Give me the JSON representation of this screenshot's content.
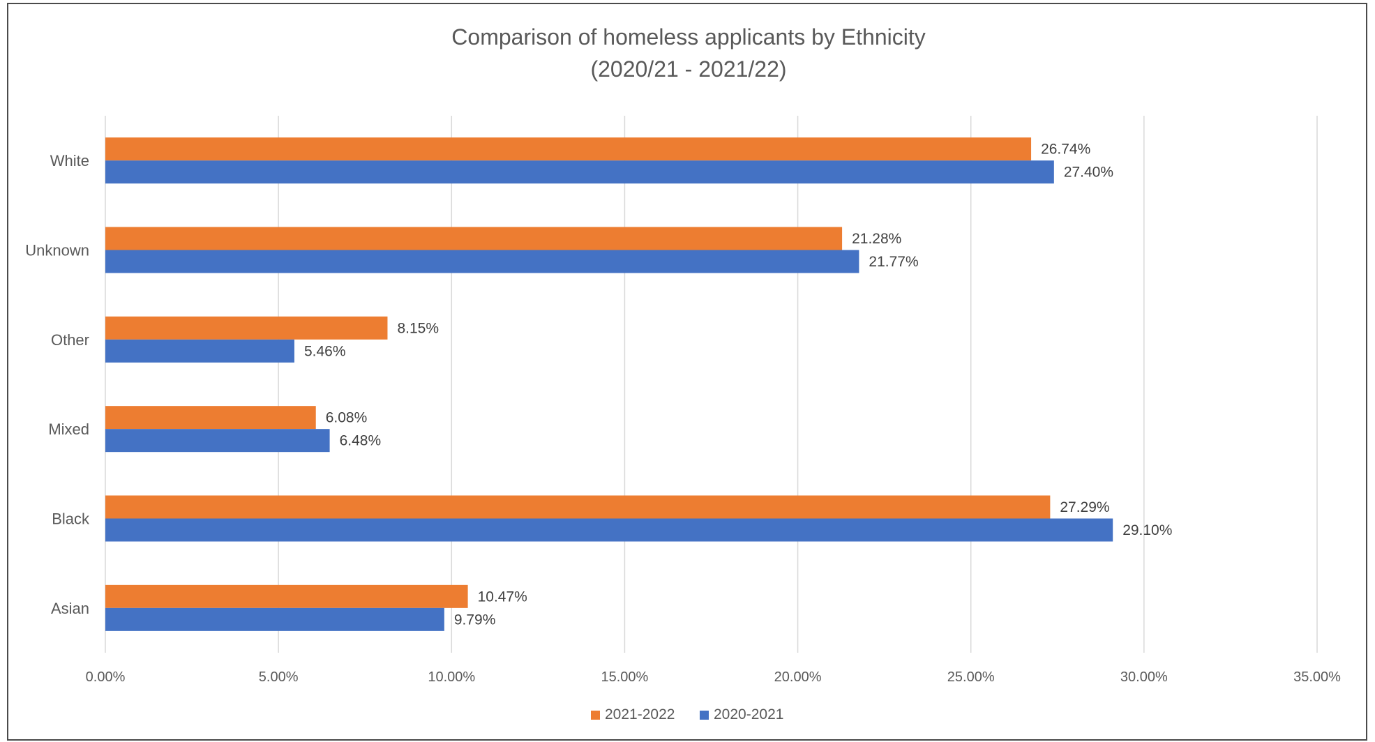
{
  "chart_data": {
    "type": "bar",
    "orientation": "horizontal",
    "title": "Comparison of homeless applicants by Ethnicity",
    "subtitle": "(2020/21 - 2021/22)",
    "categories": [
      "Asian",
      "Black",
      "Mixed",
      "Other",
      "Unknown",
      "White"
    ],
    "series": [
      {
        "name": "2021-2022",
        "color": "#ed7d31",
        "values": [
          10.47,
          27.29,
          6.08,
          8.15,
          21.28,
          26.74
        ],
        "labels": [
          "10.47%",
          "27.29%",
          "6.08%",
          "8.15%",
          "21.28%",
          "26.74%"
        ]
      },
      {
        "name": "2020-2021",
        "color": "#4472c4",
        "values": [
          9.79,
          29.1,
          6.48,
          5.46,
          21.77,
          27.4
        ],
        "labels": [
          "9.79%",
          "29.10%",
          "6.48%",
          "5.46%",
          "21.77%",
          "27.40%"
        ]
      }
    ],
    "xlim": [
      0,
      35
    ],
    "x_ticks": [
      0,
      5,
      10,
      15,
      20,
      25,
      30,
      35
    ],
    "x_tick_labels": [
      "0.00%",
      "5.00%",
      "10.00%",
      "15.00%",
      "20.00%",
      "25.00%",
      "30.00%",
      "35.00%"
    ],
    "xlabel": "",
    "ylabel": "",
    "grid": true,
    "legend_position": "bottom"
  }
}
